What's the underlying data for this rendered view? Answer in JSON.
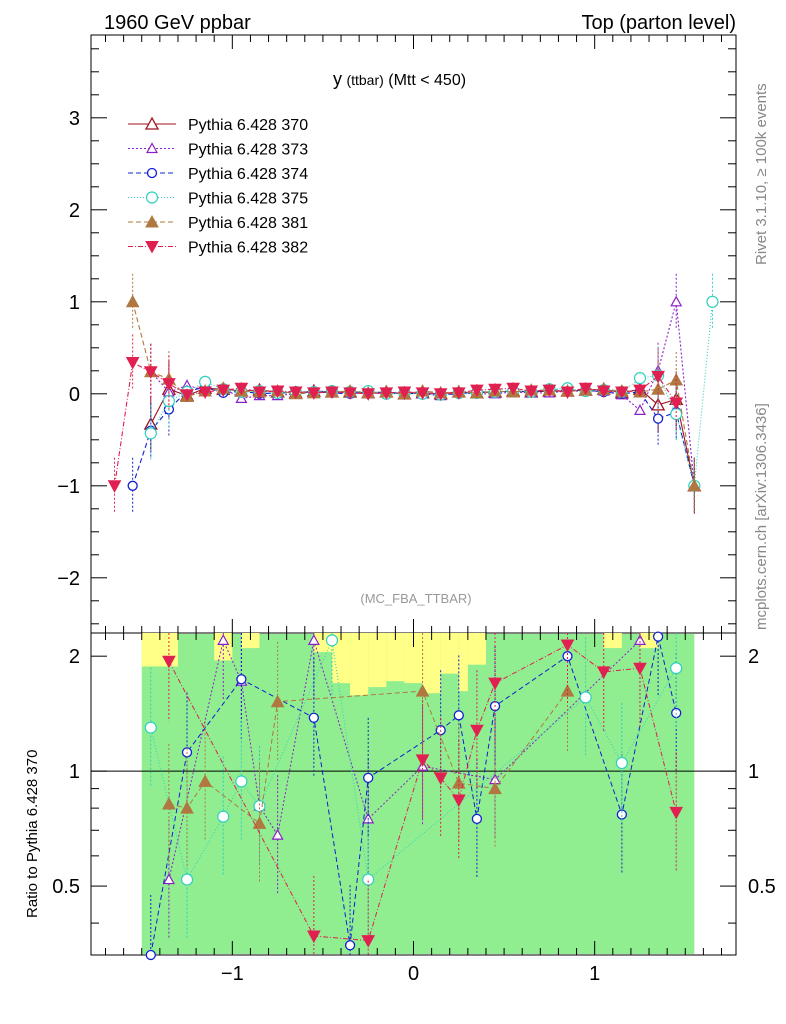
{
  "header": {
    "left": "1960 GeV ppbar",
    "right": "Top (parton level)"
  },
  "side_labels": {
    "rivet": "Rivet 3.1.10, ≥ 100k events",
    "mcplots": "mcplots.cern.ch [arXiv:1306.3436]"
  },
  "chart_data": [
    {
      "type": "line",
      "title": "y (ttbar) (Mtt < 450)",
      "title_main": "y",
      "title_sub": "(ttbar)",
      "title_rest": "(Mtt < 450)",
      "annotation": "(MC_FBA_TTBAR)",
      "xlim": [
        -1.78,
        1.78
      ],
      "ylim": [
        -2.6,
        3.9
      ],
      "yticks": [
        -2,
        -1,
        0,
        1,
        2,
        3
      ],
      "ytick_labels": [
        "−2",
        "−1",
        "0",
        "1",
        "2",
        "3"
      ],
      "legend_position": "top-left",
      "series": [
        {
          "name": "Pythia 6.428 370",
          "color": "#a01020",
          "marker": "triangle-up-open",
          "dash": "none",
          "x": [
            -1.45,
            -1.35,
            -1.25,
            -1.15,
            -1.05,
            -0.95,
            -0.85,
            -0.75,
            -0.65,
            -0.55,
            -0.45,
            -0.35,
            -0.25,
            -0.15,
            -0.05,
            0.05,
            0.15,
            0.25,
            0.35,
            0.45,
            0.55,
            0.65,
            0.75,
            0.85,
            0.95,
            1.05,
            1.15,
            1.25,
            1.35,
            1.45,
            1.55
          ],
          "y": [
            -0.33,
            0.05,
            -0.02,
            0.06,
            0.05,
            0.03,
            0.04,
            0.02,
            0.01,
            0.03,
            0.02,
            0.02,
            0.01,
            0.02,
            0.0,
            0.01,
            0.0,
            0.02,
            0.01,
            0.02,
            0.03,
            0.02,
            0.03,
            0.03,
            0.04,
            0.05,
            0.01,
            0.05,
            -0.12,
            -0.06,
            -1.0
          ]
        },
        {
          "name": "Pythia 6.428 373",
          "color": "#8a20c8",
          "marker": "triangle-up-open-small",
          "dash": "2,2",
          "x": [
            -1.45,
            -1.35,
            -1.25,
            -1.15,
            -1.05,
            -0.95,
            -0.85,
            -0.75,
            -0.65,
            -0.55,
            -0.45,
            -0.35,
            -0.25,
            -0.15,
            -0.05,
            0.05,
            0.15,
            0.25,
            0.35,
            0.45,
            0.55,
            0.65,
            0.75,
            0.85,
            0.95,
            1.05,
            1.15,
            1.25,
            1.35,
            1.45,
            1.55
          ],
          "y": [
            0.24,
            0.02,
            0.09,
            0.04,
            0.06,
            -0.05,
            -0.02,
            -0.02,
            0.0,
            0.03,
            0.02,
            0.03,
            0.0,
            0.01,
            0.01,
            0.0,
            -0.02,
            0.01,
            0.0,
            0.0,
            0.02,
            0.01,
            0.01,
            0.03,
            0.03,
            0.03,
            -0.01,
            -0.18,
            0.25,
            1.0,
            -1.0
          ]
        },
        {
          "name": "Pythia 6.428 374",
          "color": "#1020d0",
          "marker": "circle-open",
          "dash": "5,3",
          "x": [
            -1.55,
            -1.45,
            -1.35,
            -1.25,
            -1.15,
            -1.05,
            -0.95,
            -0.85,
            -0.75,
            -0.65,
            -0.55,
            -0.45,
            -0.35,
            -0.25,
            -0.15,
            -0.05,
            0.05,
            0.15,
            0.25,
            0.35,
            0.45,
            0.55,
            0.65,
            0.75,
            0.85,
            0.95,
            1.05,
            1.15,
            1.25,
            1.35,
            1.45,
            1.55
          ],
          "y": [
            -1.0,
            -0.4,
            -0.17,
            0.03,
            0.07,
            0.01,
            0.03,
            0.0,
            0.01,
            0.01,
            0.02,
            0.01,
            0.0,
            0.02,
            0.01,
            0.0,
            0.01,
            -0.01,
            0.0,
            0.02,
            0.02,
            0.03,
            0.02,
            0.04,
            0.04,
            0.04,
            0.02,
            0.0,
            0.02,
            -0.27,
            -0.2,
            -1.0
          ]
        },
        {
          "name": "Pythia 6.428 375",
          "color": "#30d0c0",
          "marker": "circle-open-large",
          "dash": "1,2",
          "x": [
            -1.45,
            -1.35,
            -1.25,
            -1.15,
            -1.05,
            -0.95,
            -0.85,
            -0.75,
            -0.65,
            -0.55,
            -0.45,
            -0.35,
            -0.25,
            -0.15,
            -0.05,
            0.05,
            0.15,
            0.25,
            0.35,
            0.45,
            0.55,
            0.65,
            0.75,
            0.85,
            0.95,
            1.05,
            1.15,
            1.25,
            1.35,
            1.45,
            1.55,
            1.65
          ],
          "y": [
            -0.43,
            -0.08,
            0.02,
            0.13,
            0.05,
            0.02,
            0.03,
            0.01,
            0.02,
            0.02,
            0.03,
            0.02,
            0.03,
            0.0,
            0.01,
            0.0,
            -0.01,
            0.01,
            0.01,
            0.02,
            0.03,
            0.02,
            0.05,
            0.06,
            0.03,
            0.04,
            0.02,
            0.17,
            0.2,
            -0.22,
            -1.0,
            1.0
          ]
        },
        {
          "name": "Pythia 6.428 381",
          "color": "#b07840",
          "marker": "triangle-up-filled",
          "dash": "5,3",
          "x": [
            -1.55,
            -1.45,
            -1.35,
            -1.25,
            -1.15,
            -1.05,
            -0.95,
            -0.85,
            -0.75,
            -0.65,
            -0.55,
            -0.45,
            -0.35,
            -0.25,
            -0.15,
            -0.05,
            0.05,
            0.15,
            0.25,
            0.35,
            0.45,
            0.55,
            0.65,
            0.75,
            0.85,
            0.95,
            1.05,
            1.15,
            1.25,
            1.35,
            1.45,
            1.55
          ],
          "y": [
            1.0,
            0.24,
            0.16,
            -0.03,
            0.03,
            0.06,
            0.03,
            0.02,
            0.03,
            0.0,
            0.01,
            0.02,
            0.03,
            0.01,
            0.02,
            0.0,
            0.03,
            0.01,
            0.02,
            0.01,
            0.03,
            0.02,
            0.04,
            0.04,
            0.03,
            0.04,
            0.05,
            0.03,
            0.02,
            0.05,
            0.15,
            -1.0
          ]
        },
        {
          "name": "Pythia 6.428 382",
          "color": "#e02050",
          "marker": "triangle-down-filled",
          "dash": "5,2,1,2",
          "x": [
            -1.65,
            -1.55,
            -1.45,
            -1.35,
            -1.25,
            -1.15,
            -1.05,
            -0.95,
            -0.85,
            -0.75,
            -0.65,
            -0.55,
            -0.45,
            -0.35,
            -0.25,
            -0.15,
            -0.05,
            0.05,
            0.15,
            0.25,
            0.35,
            0.45,
            0.55,
            0.65,
            0.75,
            0.85,
            0.95,
            1.05,
            1.15,
            1.25,
            1.35,
            1.45
          ],
          "y": [
            -1.0,
            0.34,
            0.24,
            0.11,
            -0.01,
            0.02,
            0.04,
            0.06,
            0.02,
            0.03,
            0.02,
            0.01,
            0.02,
            0.01,
            0.0,
            0.01,
            0.02,
            0.01,
            0.0,
            0.01,
            0.04,
            0.05,
            0.06,
            0.03,
            0.04,
            0.02,
            0.06,
            0.03,
            0.02,
            0.04,
            0.19,
            -0.1
          ]
        }
      ]
    },
    {
      "type": "line",
      "ylabel": "Ratio to Pythia 6.428 370",
      "xlim": [
        -1.78,
        1.78
      ],
      "ylim": [
        0.33,
        2.3
      ],
      "yscale": "log",
      "yticks": [
        0.5,
        1,
        2
      ],
      "ytick_labels": [
        "0.5",
        "1",
        "2"
      ],
      "xticks": [
        -1,
        0,
        1
      ],
      "xtick_labels": [
        "−1",
        "0",
        "1"
      ],
      "band_note": "yellow/green uncertainty bands around reference",
      "series": [
        {
          "name": "Pythia 6.428 373",
          "x": [
            -1.35,
            -1.05,
            -0.95,
            -0.85,
            -0.75,
            -0.55,
            -0.25,
            0.05,
            0.45,
            1.25
          ],
          "y": [
            0.52,
            2.2,
            1.72,
            0.81,
            0.68,
            2.2,
            0.75,
            1.03,
            0.95,
            2.2
          ]
        },
        {
          "name": "Pythia 6.428 374",
          "x": [
            -1.45,
            -1.25,
            -0.95,
            -0.55,
            -0.35,
            -0.25,
            0.15,
            0.25,
            0.35,
            0.45,
            0.85,
            1.15,
            1.35,
            1.45
          ],
          "y": [
            0.33,
            1.12,
            1.74,
            1.38,
            0.35,
            0.96,
            1.28,
            1.4,
            0.75,
            1.48,
            2.0,
            0.77,
            2.25,
            1.42
          ]
        },
        {
          "name": "Pythia 6.428 375",
          "x": [
            -1.45,
            -1.25,
            -1.05,
            -0.95,
            -0.85,
            -0.45,
            -0.25,
            0.95,
            1.15,
            1.45
          ],
          "y": [
            1.3,
            0.52,
            0.76,
            0.94,
            0.81,
            2.2,
            0.52,
            1.56,
            1.05,
            1.86
          ]
        },
        {
          "name": "Pythia 6.428 381",
          "x": [
            -1.35,
            -1.25,
            -1.15,
            -0.85,
            -0.75,
            0.05,
            0.25,
            0.45,
            0.85
          ],
          "y": [
            0.82,
            0.8,
            0.94,
            0.73,
            1.52,
            1.62,
            0.93,
            0.9,
            1.62
          ]
        },
        {
          "name": "Pythia 6.428 382",
          "x": [
            -1.35,
            -0.55,
            -0.25,
            0.05,
            0.15,
            0.25,
            0.35,
            0.45,
            0.85,
            1.05,
            1.25,
            1.45
          ],
          "y": [
            1.94,
            0.37,
            0.36,
            1.07,
            0.96,
            0.84,
            1.28,
            1.7,
            2.14,
            1.82,
            1.86,
            0.78
          ]
        }
      ]
    }
  ]
}
